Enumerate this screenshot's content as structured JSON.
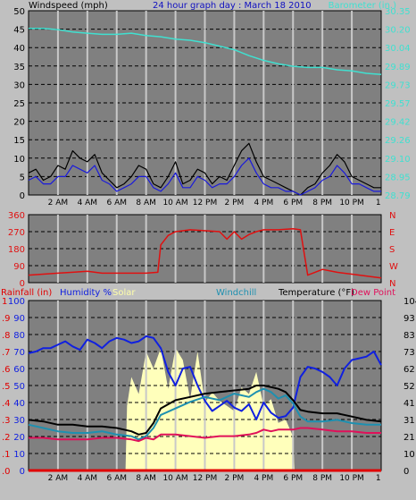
{
  "header": {
    "left_label": "Windspeed (mph)",
    "title": "24 hour graph day : March 18 2010",
    "right_label": "Barometer (in.)"
  },
  "panel3_labels": {
    "rainfall": "Rainfall (in)",
    "humidity": "Humidity %",
    "solar": "Solar",
    "windchill": "Windchill",
    "temperature": "Temperature (°F)",
    "dewpoint": "Dew Point"
  },
  "colors": {
    "background": "#c0c0c0",
    "plot_bg": "#808080",
    "barometer": "#40e0d0",
    "windspeed_avg": "#1a1adc",
    "windspeed_gust": "#000000",
    "wind_direction": "#e01010",
    "humidity": "#1020e0",
    "temperature": "#000000",
    "windchill": "#1e90b0",
    "dewpoint": "#e0105a",
    "solar": "#ffffbb",
    "rainfall": "#e00000"
  },
  "chart_data": [
    {
      "type": "line",
      "title": "24 hour graph day : March 18 2010",
      "x_tick_labels": [
        "2 AM",
        "4 AM",
        "6 AM",
        "8 AM",
        "10 AM",
        "12 PM",
        "2 PM",
        "4 PM",
        "6 PM",
        "8 PM",
        "10 PM",
        "1"
      ],
      "x_ticks_hours": [
        2,
        4,
        6,
        8,
        10,
        12,
        14,
        16,
        18,
        20,
        22,
        23.8
      ],
      "xlim_hours": [
        0,
        24
      ],
      "left_axis": {
        "label": "Windspeed (mph)",
        "ylim": [
          0,
          50
        ],
        "ticks": [
          "0",
          "5",
          "10",
          "15",
          "20",
          "25",
          "30",
          "35",
          "40",
          "45",
          "50"
        ]
      },
      "right_axis": {
        "label": "Barometer (in.)",
        "ylim": [
          28.79,
          30.35
        ],
        "ticks": [
          "28.79",
          "28.95",
          "29.10",
          "29.26",
          "29.42",
          "29.57",
          "29.73",
          "29.89",
          "30.04",
          "30.20",
          "30.35"
        ]
      },
      "series": [
        {
          "axis": "right",
          "color": "#40e0d0",
          "x": [
            0,
            1,
            2,
            3,
            4,
            5,
            6,
            7,
            8,
            9,
            10,
            11,
            12,
            13,
            14,
            15,
            16,
            17,
            18,
            19,
            20,
            21,
            22,
            23,
            24
          ],
          "y": [
            30.2,
            30.2,
            30.19,
            30.17,
            30.16,
            30.15,
            30.15,
            30.16,
            30.14,
            30.13,
            30.11,
            30.1,
            30.08,
            30.05,
            30.02,
            29.97,
            29.93,
            29.9,
            29.88,
            29.87,
            29.87,
            29.85,
            29.84,
            29.82,
            29.81
          ]
        },
        {
          "axis": "left",
          "color": "#000000",
          "x": [
            0,
            0.5,
            1,
            1.5,
            2,
            2.5,
            3,
            3.5,
            4,
            4.5,
            5,
            5.5,
            6,
            6.5,
            7,
            7.5,
            8,
            8.5,
            9,
            9.5,
            10,
            10.5,
            11,
            11.5,
            12,
            12.5,
            13,
            13.5,
            14,
            14.5,
            15,
            15.5,
            16,
            16.5,
            17,
            17.5,
            18,
            18.5,
            19,
            19.5,
            20,
            20.5,
            21,
            21.5,
            22,
            22.5,
            23,
            23.5,
            24
          ],
          "y": [
            6,
            7,
            4,
            5,
            8,
            7,
            12,
            10,
            9,
            11,
            6,
            4,
            2,
            3,
            5,
            8,
            7,
            3,
            2,
            5,
            9,
            3,
            4,
            7,
            6,
            3,
            5,
            4,
            8,
            12,
            14,
            9,
            5,
            4,
            3,
            2,
            1,
            0,
            2,
            3,
            6,
            8,
            11,
            9,
            5,
            4,
            3,
            2,
            2
          ]
        },
        {
          "axis": "left",
          "color": "#1a1adc",
          "x": [
            0,
            0.5,
            1,
            1.5,
            2,
            2.5,
            3,
            3.5,
            4,
            4.5,
            5,
            5.5,
            6,
            6.5,
            7,
            7.5,
            8,
            8.5,
            9,
            9.5,
            10,
            10.5,
            11,
            11.5,
            12,
            12.5,
            13,
            13.5,
            14,
            14.5,
            15,
            15.5,
            16,
            16.5,
            17,
            17.5,
            18,
            18.5,
            19,
            19.5,
            20,
            20.5,
            21,
            21.5,
            22,
            22.5,
            23,
            23.5,
            24
          ],
          "y": [
            4,
            5,
            3,
            3,
            5,
            5,
            8,
            7,
            6,
            8,
            4,
            3,
            1,
            2,
            3,
            5,
            5,
            2,
            1,
            3,
            6,
            2,
            2,
            5,
            4,
            2,
            3,
            3,
            5,
            8,
            10,
            6,
            3,
            2,
            2,
            1,
            1,
            0,
            1,
            2,
            4,
            5,
            8,
            6,
            3,
            3,
            2,
            1,
            1
          ]
        }
      ]
    },
    {
      "type": "line",
      "y_ticks": [
        "0",
        "90",
        "180",
        "270",
        "360"
      ],
      "ylim": [
        0,
        360
      ],
      "right_labels": [
        "N",
        "W",
        "S",
        "E",
        "N"
      ],
      "series": [
        {
          "color": "#e01010",
          "x": [
            0,
            1,
            2,
            3,
            4,
            5,
            6,
            7,
            8,
            8.8,
            9.0,
            9.5,
            10,
            11,
            12,
            13,
            13.5,
            14,
            14.5,
            15,
            15.5,
            16,
            16.5,
            17,
            18,
            18.5,
            19,
            19.5,
            20,
            21,
            22,
            23,
            24
          ],
          "y": [
            40,
            45,
            50,
            55,
            60,
            50,
            50,
            50,
            50,
            55,
            200,
            250,
            270,
            280,
            275,
            270,
            230,
            270,
            230,
            255,
            270,
            280,
            280,
            280,
            285,
            280,
            40,
            55,
            70,
            55,
            45,
            35,
            25
          ]
        }
      ]
    },
    {
      "type": "line",
      "left_axis": {
        "label": "Humidity %",
        "ylim": [
          0,
          100
        ],
        "ticks": [
          "0",
          "10",
          "20",
          "30",
          "40",
          "50",
          "60",
          "70",
          "80",
          "90",
          "100"
        ]
      },
      "rain_axis": {
        "label": "Rainfall (in)",
        "ylim": [
          0,
          1
        ],
        "ticks": [
          ".0",
          ".1",
          ".2",
          ".3",
          ".4",
          ".5",
          ".6",
          ".7",
          ".8",
          ".9",
          "1"
        ]
      },
      "right_axis": {
        "label": "Temperature (°F)",
        "ylim": [
          0,
          104
        ],
        "ticks": [
          "0",
          "10",
          "21",
          "31",
          "41",
          "52",
          "62",
          "73",
          "83",
          "93",
          "104"
        ]
      },
      "series": [
        {
          "name": "Humidity",
          "axis": "left",
          "color": "#1020e0",
          "x": [
            0,
            0.5,
            1,
            1.5,
            2,
            2.5,
            3,
            3.5,
            4,
            4.5,
            5,
            5.5,
            6,
            6.5,
            7,
            7.5,
            8,
            8.5,
            9,
            9.5,
            10,
            10.5,
            11,
            11.5,
            12,
            12.5,
            13,
            13.5,
            14,
            14.5,
            15,
            15.5,
            16,
            16.5,
            17,
            17.5,
            18,
            18.5,
            19,
            19.5,
            20,
            20.5,
            21,
            21.5,
            22,
            22.5,
            23,
            23.5,
            24
          ],
          "y": [
            69,
            70,
            72,
            72,
            74,
            76,
            73,
            71,
            77,
            75,
            72,
            76,
            78,
            77,
            75,
            76,
            79,
            78,
            72,
            58,
            50,
            60,
            61,
            50,
            41,
            35,
            38,
            41,
            37,
            35,
            39,
            30,
            40,
            34,
            31,
            32,
            37,
            55,
            61,
            60,
            58,
            55,
            50,
            60,
            65,
            66,
            67,
            70,
            62
          ]
        },
        {
          "name": "Temperature",
          "axis": "right",
          "color": "#000000",
          "x": [
            0,
            1,
            2,
            3,
            4,
            5,
            6,
            7,
            7.5,
            8,
            8.5,
            9,
            10,
            11,
            12,
            13,
            14,
            15,
            15.5,
            16,
            16.5,
            17,
            17.5,
            18,
            18.5,
            19,
            20,
            21,
            22,
            23,
            24
          ],
          "y": [
            31,
            30,
            28,
            28,
            27,
            27,
            26,
            24,
            22,
            23,
            29,
            38,
            43,
            45,
            47,
            48,
            49,
            50,
            52,
            52,
            51,
            50,
            48,
            43,
            37,
            36,
            35,
            35,
            33,
            31,
            30
          ]
        },
        {
          "name": "Windchill",
          "axis": "right",
          "color": "#1e90b0",
          "x": [
            0,
            1,
            2,
            3,
            4,
            5,
            6,
            7,
            7.5,
            8,
            8.5,
            9,
            10,
            11,
            12,
            13,
            14,
            15,
            15.5,
            16,
            16.5,
            17,
            17.5,
            18,
            18.5,
            19,
            20,
            21,
            22,
            23,
            24
          ],
          "y": [
            28,
            26,
            24,
            23,
            23,
            24,
            22,
            21,
            19,
            21,
            26,
            34,
            38,
            42,
            45,
            43,
            47,
            45,
            48,
            50,
            48,
            44,
            46,
            41,
            33,
            30,
            30,
            31,
            29,
            28,
            28
          ]
        },
        {
          "name": "Dew Point",
          "axis": "right",
          "color": "#e0105a",
          "x": [
            0,
            1,
            2,
            3,
            4,
            5,
            6,
            7,
            7.5,
            8,
            8.5,
            9,
            10,
            11,
            12,
            13,
            14,
            15,
            15.5,
            16,
            16.5,
            17,
            17.5,
            18,
            18.5,
            19,
            20,
            21,
            22,
            23,
            24
          ],
          "y": [
            20,
            20,
            19,
            19,
            19,
            20,
            20,
            19,
            18,
            20,
            19,
            22,
            22,
            21,
            20,
            21,
            21,
            22,
            23,
            25,
            24,
            25,
            25,
            25,
            26,
            26,
            25,
            24,
            24,
            23,
            23
          ]
        },
        {
          "name": "Solar",
          "axis": "left",
          "color": "#ffffbb",
          "type": "area",
          "x": [
            0,
            6.6,
            6.7,
            7,
            7.5,
            8,
            8.5,
            9,
            9.5,
            10,
            10.5,
            11,
            11.5,
            12,
            12.5,
            13,
            13.5,
            14,
            14.5,
            15,
            15.5,
            16,
            16.5,
            17,
            17.5,
            18,
            18.1,
            24
          ],
          "y": [
            0,
            0,
            38,
            55,
            45,
            70,
            60,
            72,
            48,
            72,
            65,
            42,
            70,
            40,
            46,
            41,
            38,
            35,
            49,
            45,
            58,
            38,
            42,
            28,
            30,
            20,
            0,
            0
          ]
        },
        {
          "name": "Rainfall",
          "axis": "rain",
          "color": "#e00000",
          "x": [
            0,
            24
          ],
          "y": [
            0,
            0
          ]
        }
      ]
    }
  ]
}
